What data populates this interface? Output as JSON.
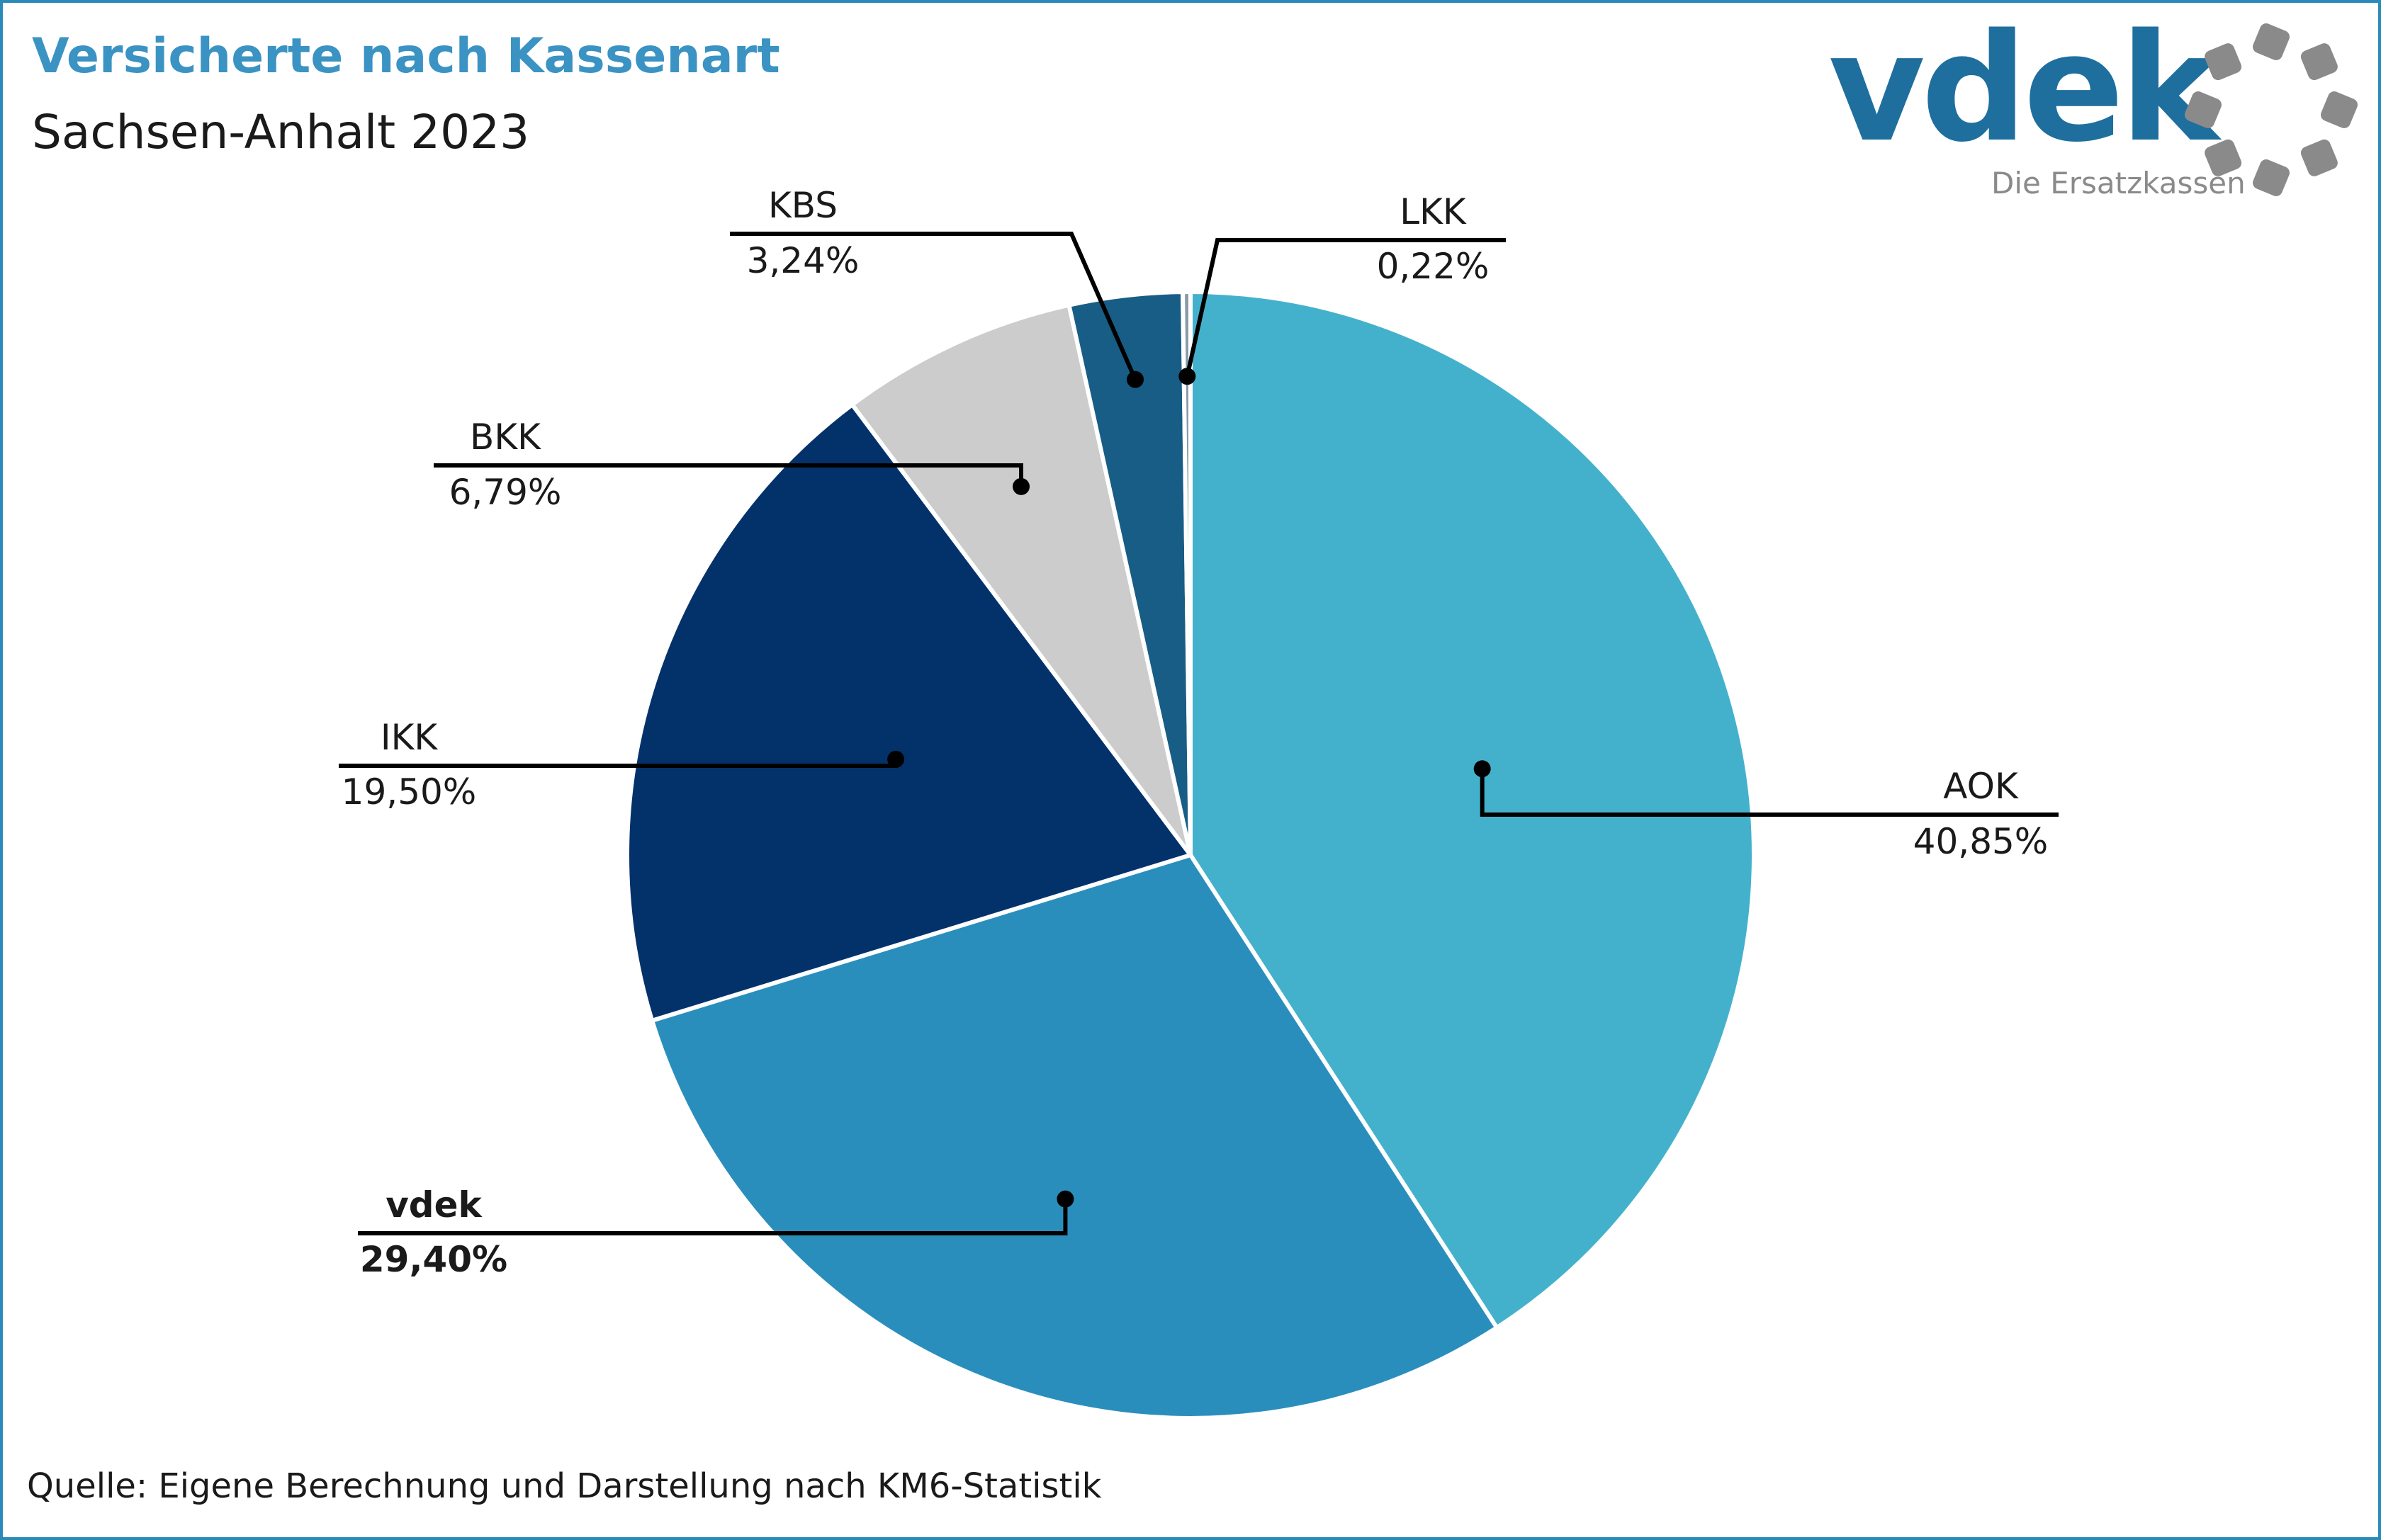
{
  "header": {
    "title": "Versicherte nach Kassenart",
    "subtitle": "Sachsen-Anhalt 2023"
  },
  "logo": {
    "word": "vdek",
    "tagline": "Die Ersatzkassen",
    "colors": {
      "word": "#1e6f9e",
      "ring": "#8a8a8a"
    }
  },
  "footer": {
    "source": "Quelle: Eigene Berechnung und Darstellung nach KM6-Statistik"
  },
  "chart_data": {
    "type": "pie",
    "start": "top, clockwise",
    "slices": [
      {
        "label": "AOK",
        "value": 40.85,
        "display": "40,85%",
        "color": "#44b1cc",
        "bold": false
      },
      {
        "label": "vdek",
        "value": 29.4,
        "display": "29,40%",
        "color": "#2a8ebd",
        "bold": true
      },
      {
        "label": "IKK",
        "value": 19.5,
        "display": "19,50%",
        "color": "#03326b",
        "bold": false
      },
      {
        "label": "BKK",
        "value": 6.79,
        "display": "6,79%",
        "color": "#cccccc",
        "bold": false
      },
      {
        "label": "KBS",
        "value": 3.24,
        "display": "3,24%",
        "color": "#185d86",
        "bold": false
      },
      {
        "label": "LKK",
        "value": 0.22,
        "display": "0,22%",
        "color": "#8a9ba8",
        "bold": false
      }
    ]
  }
}
